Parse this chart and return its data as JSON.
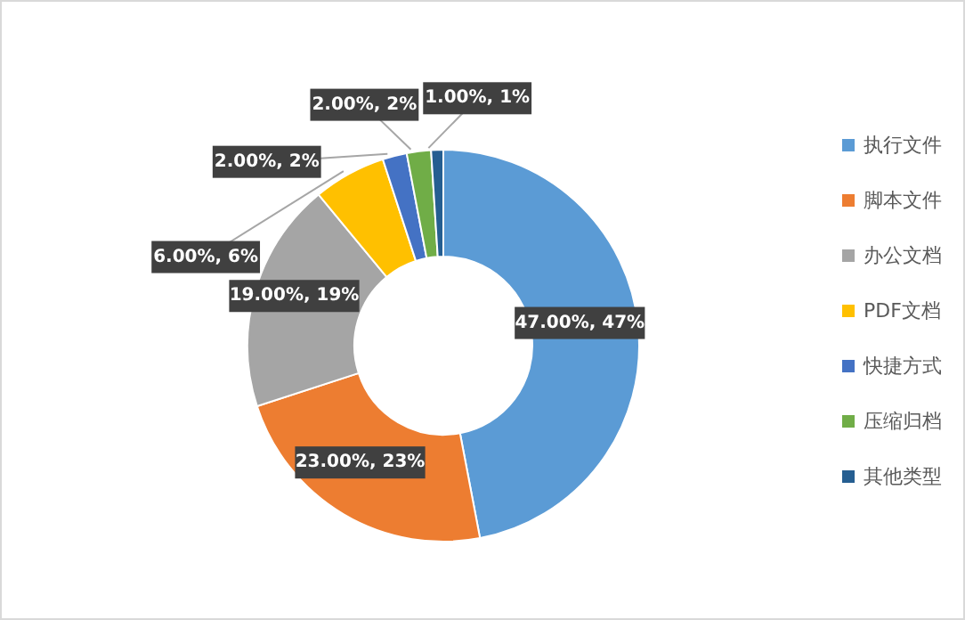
{
  "chart_data": {
    "type": "donut",
    "categories": [
      "执行文件",
      "脚本文件",
      "办公文档",
      "PDF文档",
      "快捷方式",
      "压缩归档",
      "其他类型"
    ],
    "values": [
      47,
      23,
      19,
      6,
      2,
      2,
      1
    ],
    "colors": [
      "#5b9bd5",
      "#ed7d31",
      "#a5a5a5",
      "#ffc000",
      "#4472c4",
      "#70ad47",
      "#255e91"
    ],
    "value_labels": [
      "47.00%, 47%",
      "23.00%, 23%",
      "19.00%, 19%",
      "6.00%, 6%",
      "2.00%, 2%",
      "2.00%, 2%",
      "1.00%, 1%"
    ],
    "legend": "right"
  }
}
